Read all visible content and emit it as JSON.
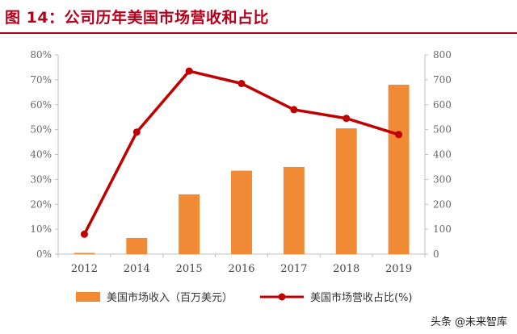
{
  "title": "图 14：公司历年美国市场营收和占比",
  "watermark": "头条 @未来智库",
  "chart_data": {
    "type": "bar",
    "categories": [
      "2012",
      "2014",
      "2015",
      "2016",
      "2017",
      "2018",
      "2019"
    ],
    "series": [
      {
        "name": "美国市场收入（百万美元）",
        "type": "bar",
        "axis": "right",
        "color": "#f08a34",
        "values": [
          5,
          65,
          240,
          335,
          350,
          505,
          680
        ]
      },
      {
        "name": "美国市场营收占比(%)",
        "type": "line",
        "axis": "left",
        "color": "#c00000",
        "values": [
          8,
          49,
          73.5,
          68.5,
          58,
          54.5,
          48
        ]
      }
    ],
    "y_left": {
      "ticks": [
        "0%",
        "10%",
        "20%",
        "30%",
        "40%",
        "50%",
        "60%",
        "70%",
        "80%"
      ],
      "range": [
        0,
        80
      ]
    },
    "y_right": {
      "ticks": [
        "0",
        "100",
        "200",
        "300",
        "400",
        "500",
        "600",
        "700",
        "800"
      ],
      "range": [
        0,
        800
      ]
    },
    "grid": false,
    "legend_position": "bottom"
  }
}
